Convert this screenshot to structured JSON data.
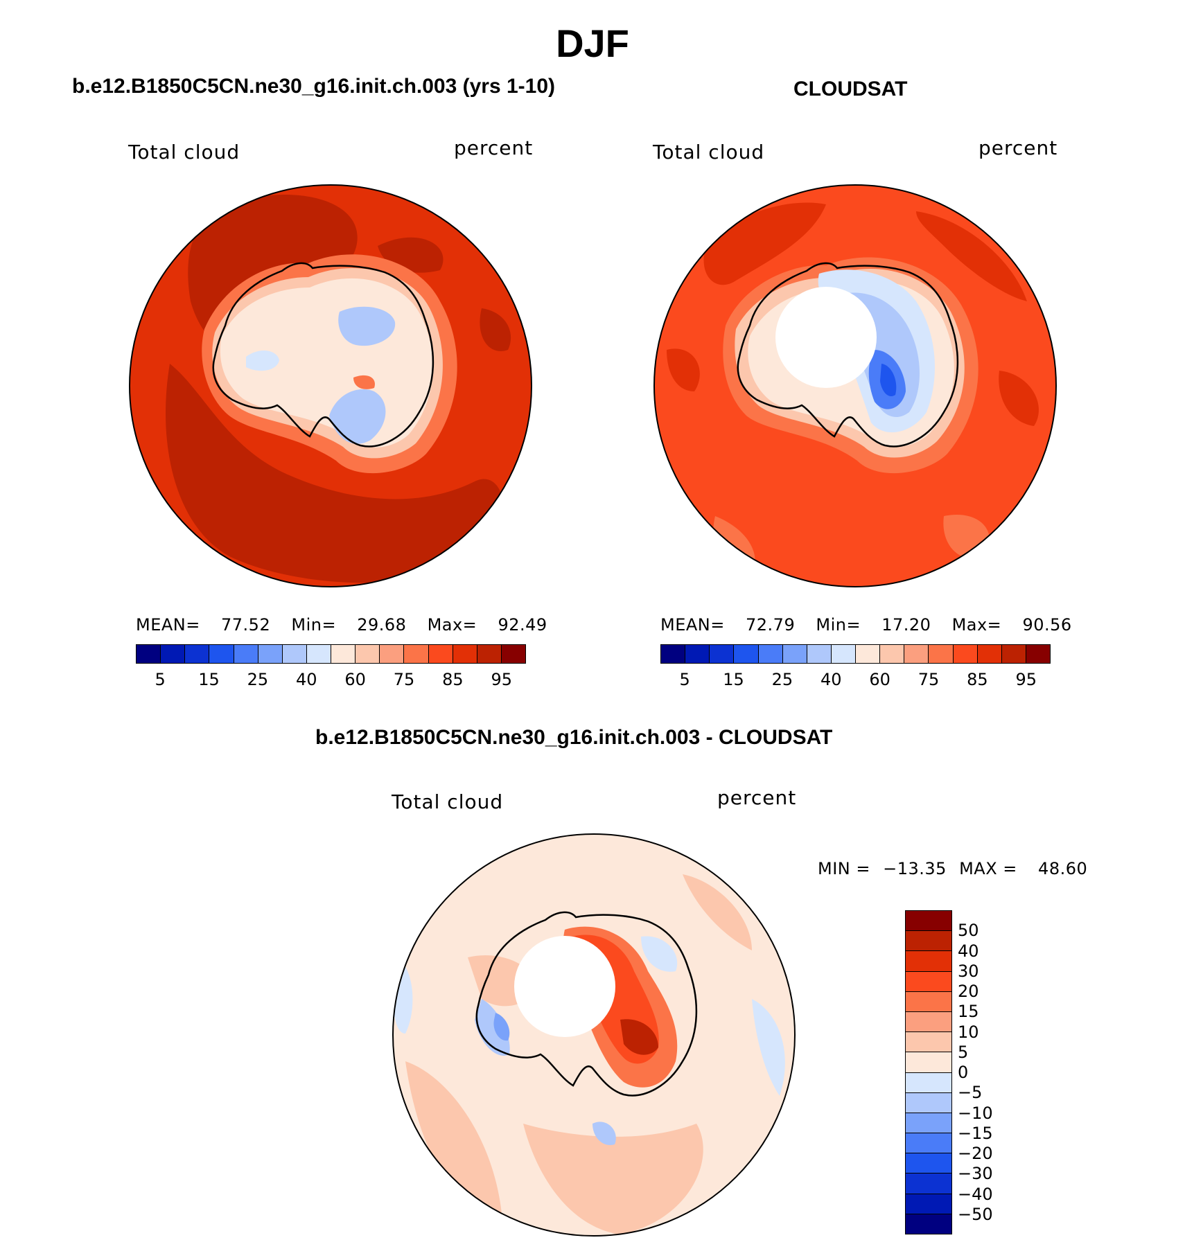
{
  "page": {
    "title": "DJF",
    "panel_left_title": "b.e12.B1850C5CN.ne30_g16.init.ch.003 (yrs 1-10)",
    "panel_right_title": "CLOUDSAT",
    "panel_bottom_title": "b.e12.B1850C5CN.ne30_g16.init.ch.003 - CLOUDSAT"
  },
  "colors": {
    "abs_scale": [
      "#000080",
      "#0019b4",
      "#0c32d2",
      "#1e55ee",
      "#4a7cf8",
      "#7aa2fa",
      "#afc8fb",
      "#d6e6fd",
      "#fde8da",
      "#fcc7ad",
      "#fb9f7f",
      "#fb7448",
      "#fb4a1e",
      "#e23006",
      "#bc2202",
      "#870000"
    ],
    "diff_scale": [
      "#000080",
      "#0019b4",
      "#0c32d2",
      "#1e55ee",
      "#4a7cf8",
      "#7aa2fa",
      "#afc8fb",
      "#d6e6fd",
      "#fde8da",
      "#fcc7ad",
      "#fb9f7f",
      "#fb7448",
      "#fb4a1e",
      "#e23006",
      "#bc2202",
      "#870000"
    ],
    "land_outline": "#000000"
  },
  "chart_data": [
    {
      "type": "heatmap",
      "projection": "south-polar-stereographic",
      "title": "b.e12.B1850C5CN.ne30_g16.init.ch.003 (yrs 1-10)",
      "left_label": "Total cloud",
      "right_label": "percent",
      "stats": {
        "mean_label": "MEAN=",
        "mean": "77.52",
        "min_label": "Min=",
        "min": "29.68",
        "max_label": "Max=",
        "max": "92.49"
      },
      "levels": [
        5,
        10,
        15,
        20,
        25,
        30,
        40,
        50,
        60,
        70,
        75,
        80,
        85,
        90,
        95
      ],
      "tick_labels": [
        "5",
        "15",
        "25",
        "40",
        "60",
        "75",
        "85",
        "95"
      ],
      "has_data_hole": false
    },
    {
      "type": "heatmap",
      "projection": "south-polar-stereographic",
      "title": "CLOUDSAT",
      "left_label": "Total cloud",
      "right_label": "percent",
      "stats": {
        "mean_label": "MEAN=",
        "mean": "72.79",
        "min_label": "Min=",
        "min": "17.20",
        "max_label": "Max=",
        "max": "90.56"
      },
      "levels": [
        5,
        10,
        15,
        20,
        25,
        30,
        40,
        50,
        60,
        70,
        75,
        80,
        85,
        90,
        95
      ],
      "tick_labels": [
        "5",
        "15",
        "25",
        "40",
        "60",
        "75",
        "85",
        "95"
      ],
      "has_data_hole": true
    },
    {
      "type": "heatmap",
      "projection": "south-polar-stereographic",
      "title": "b.e12.B1850C5CN.ne30_g16.init.ch.003 - CLOUDSAT",
      "left_label": "Total cloud",
      "right_label": "percent",
      "stats": {
        "min_label": "MIN =",
        "min": "−13.35",
        "max_label": "MAX =",
        "max": "48.60"
      },
      "levels": [
        50,
        40,
        30,
        20,
        15,
        10,
        5,
        0,
        -5,
        -10,
        -15,
        -20,
        -30,
        -40,
        -50
      ],
      "tick_labels": [
        "50",
        "40",
        "30",
        "20",
        "15",
        "10",
        "5",
        "0",
        "−5",
        "−10",
        "−15",
        "−20",
        "−30",
        "−40",
        "−50"
      ],
      "has_data_hole": true
    }
  ]
}
